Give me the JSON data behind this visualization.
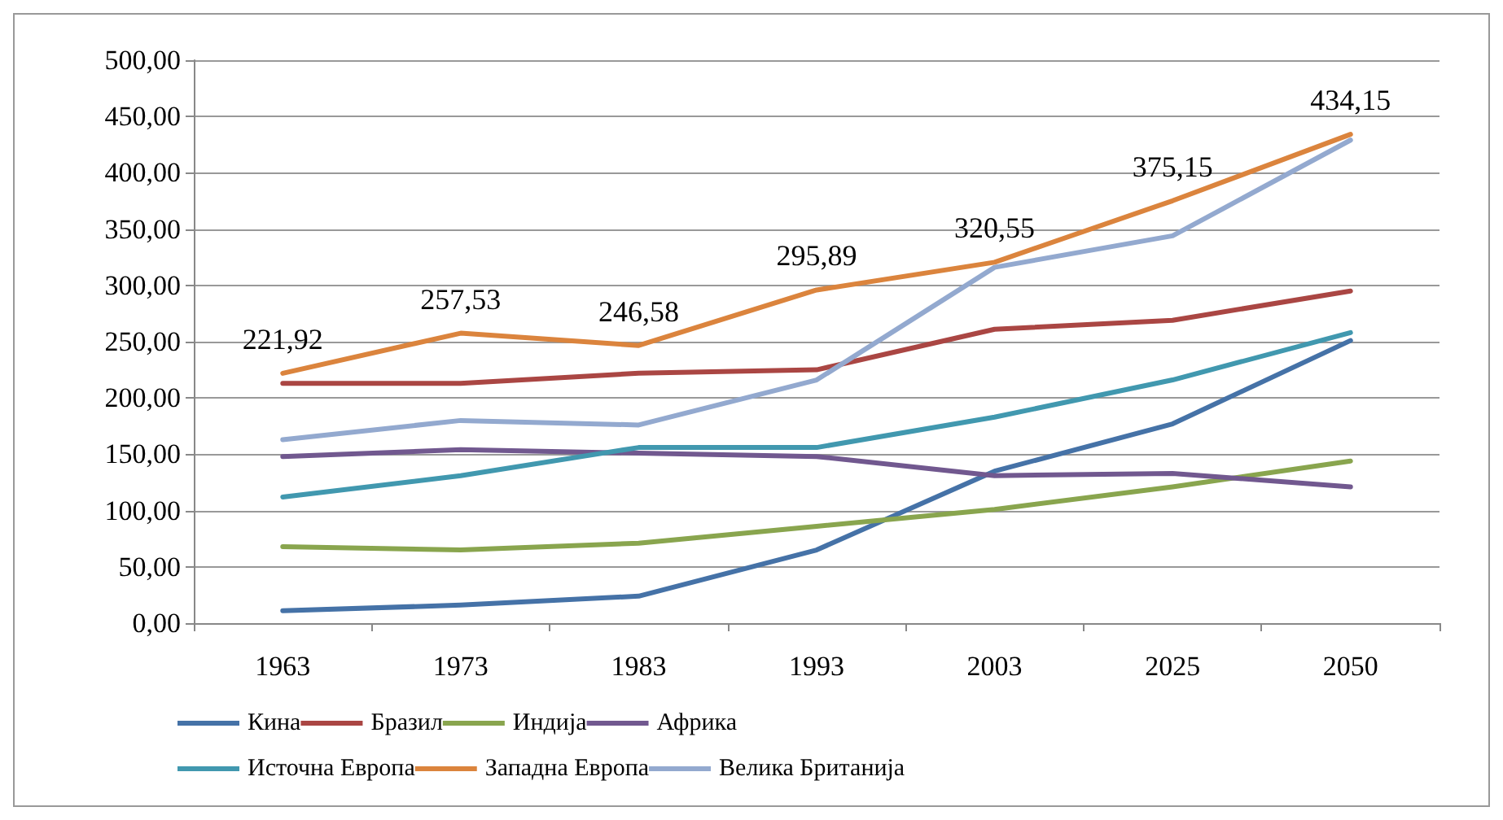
{
  "chart_data": {
    "type": "line",
    "categories": [
      "1963",
      "1973",
      "1983",
      "1993",
      "2003",
      "2025",
      "2050"
    ],
    "series": [
      {
        "name": "Кина",
        "color": "#4572a7",
        "values": [
          11,
          16,
          24,
          65,
          135,
          177,
          251
        ]
      },
      {
        "name": "Бразил",
        "color": "#aa4643",
        "values": [
          213,
          213,
          222,
          225,
          261,
          269,
          295
        ]
      },
      {
        "name": "Индија",
        "color": "#89a54e",
        "values": [
          68,
          65,
          71,
          86,
          101,
          121,
          144
        ]
      },
      {
        "name": "Африка",
        "color": "#71588f",
        "values": [
          148,
          154,
          151,
          148,
          131,
          133,
          121
        ]
      },
      {
        "name": "Источна Европа",
        "color": "#4198af",
        "values": [
          112,
          131,
          156,
          156,
          183,
          216,
          258
        ]
      },
      {
        "name": "Западна Европа",
        "color": "#db843d",
        "values": [
          221.92,
          257.53,
          246.58,
          295.89,
          320.55,
          375.15,
          434.15
        ],
        "value_labels": [
          "221,92",
          "257,53",
          "246,58",
          "295,89",
          "320,55",
          "375,15",
          "434,15"
        ]
      },
      {
        "name": "Велика Британија",
        "color": "#93a9cf",
        "values": [
          163,
          180,
          176,
          216,
          316,
          344,
          429
        ]
      }
    ],
    "ylim": [
      0,
      500
    ],
    "yticks": [
      {
        "value": 0,
        "label": "0,00"
      },
      {
        "value": 50,
        "label": "50,00"
      },
      {
        "value": 100,
        "label": "100,00"
      },
      {
        "value": 150,
        "label": "150,00"
      },
      {
        "value": 200,
        "label": "200,00"
      },
      {
        "value": 250,
        "label": "250,00"
      },
      {
        "value": 300,
        "label": "300,00"
      },
      {
        "value": 350,
        "label": "350,00"
      },
      {
        "value": 400,
        "label": "400,00"
      },
      {
        "value": 450,
        "label": "450,00"
      },
      {
        "value": 500,
        "label": "500,00"
      }
    ],
    "grid": "y",
    "legend": "bottom",
    "marker": "none",
    "line_style": "solid"
  }
}
